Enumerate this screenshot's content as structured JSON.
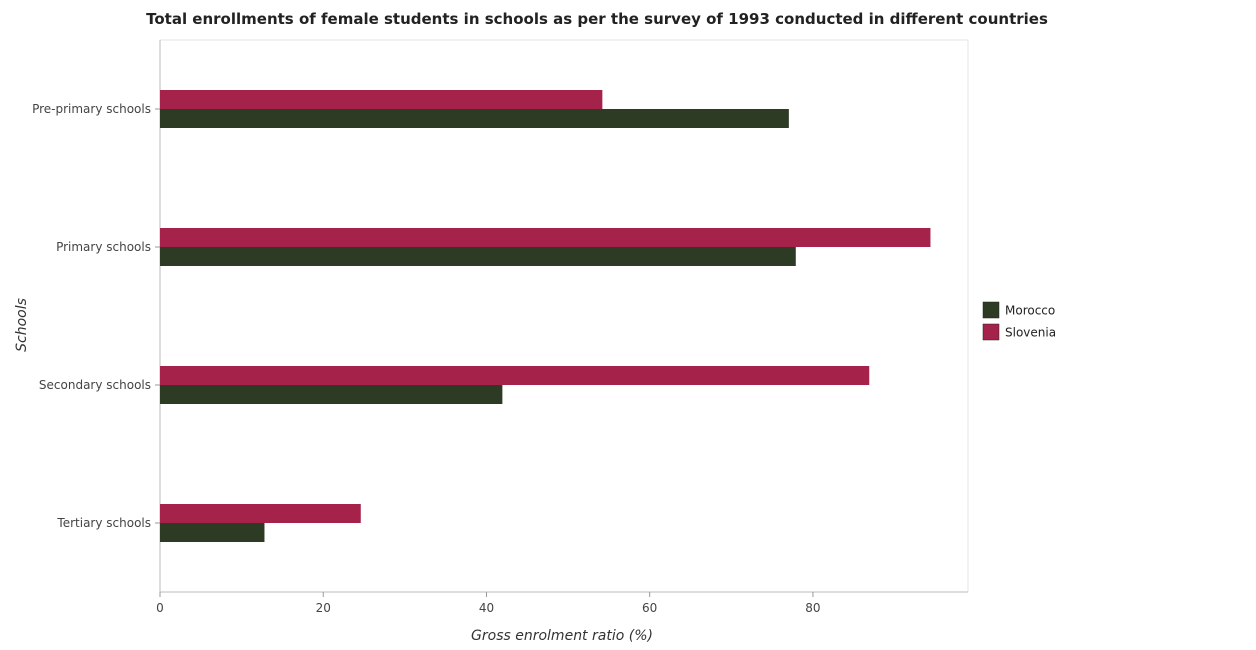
{
  "chart_data": {
    "type": "bar",
    "orientation": "horizontal",
    "title": "Total enrollments of female students in schools as per the survey of 1993 conducted in different countries",
    "xlabel": "Gross enrolment ratio (%)",
    "ylabel": "Schools",
    "categories": [
      "Pre-primary schools",
      "Primary schools",
      "Secondary schools",
      "Tertiary schools"
    ],
    "series": [
      {
        "name": "Morocco",
        "color": "#2d3b24",
        "values": [
          77.05,
          77.9,
          41.95,
          12.8
        ]
      },
      {
        "name": "Slovenia",
        "color": "#a5234a",
        "values": [
          54.2,
          94.4,
          86.9,
          24.6
        ]
      }
    ],
    "xlim": [
      0,
      99
    ],
    "xticks": [
      "0",
      "20",
      "40",
      "60",
      "80"
    ],
    "xtick_values": [
      0,
      20,
      40,
      60,
      80
    ],
    "legend_position": "right",
    "grid": false
  }
}
